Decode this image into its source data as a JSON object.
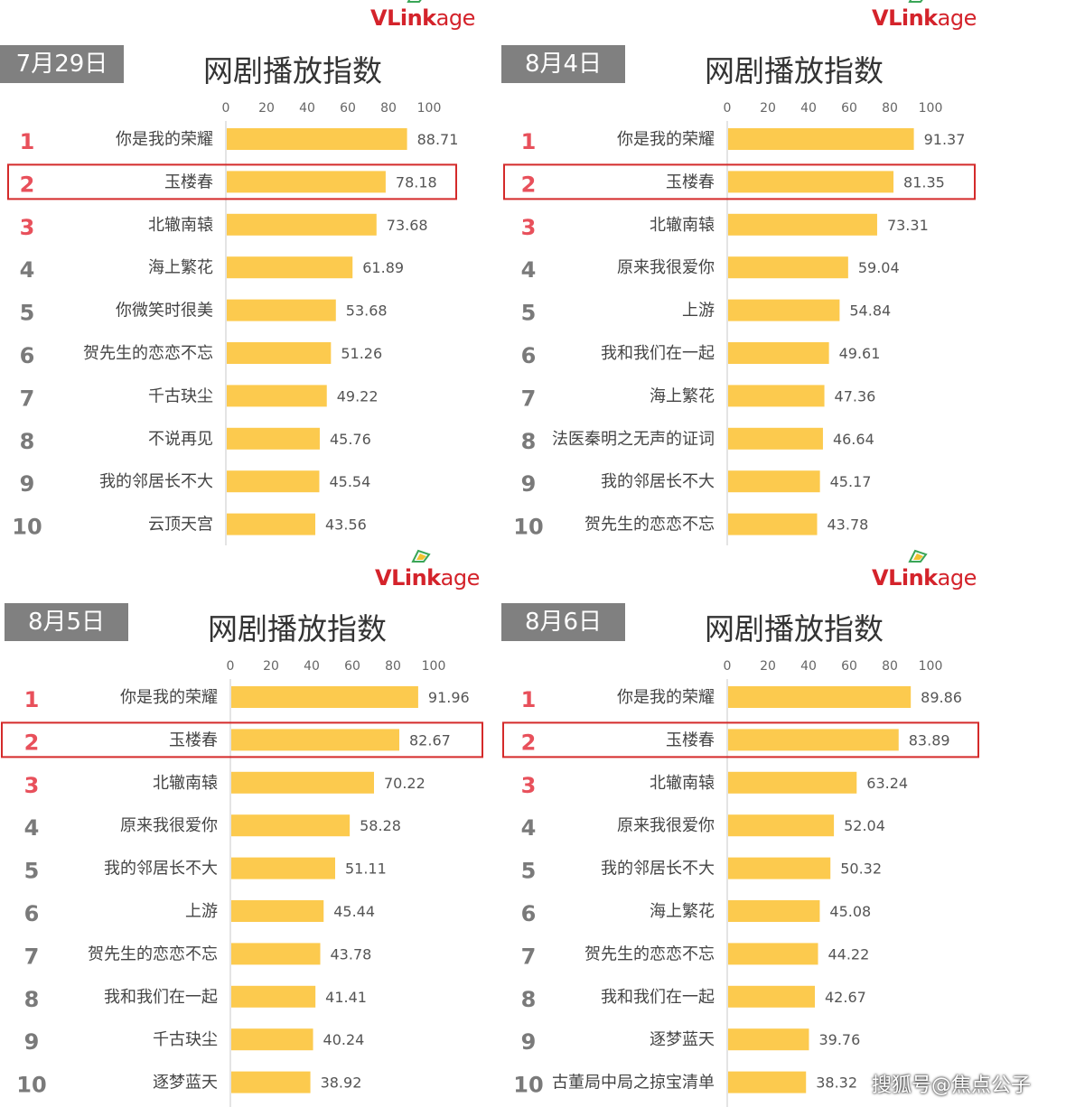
{
  "brand": {
    "logo_bold": "VLink",
    "logo_rest": "age"
  },
  "colors": {
    "bar": "#fcca4e",
    "rank_top": "#e8505b",
    "rank_other": "#7a7a7a",
    "highlight": "#d42a2a",
    "date_bg": "#808080"
  },
  "watermark": "搜狐号@焦点公子",
  "chart_data": [
    {
      "type": "bar",
      "date": "7月29日",
      "title": "网剧播放指数",
      "xlim": [
        0,
        100
      ],
      "ticks": [
        0,
        20,
        40,
        60,
        80,
        100
      ],
      "highlight_rank": 2,
      "categories": [
        "你是我的荣耀",
        "玉楼春",
        "北辙南辕",
        "海上繁花",
        "你微笑时很美",
        "贺先生的恋恋不忘",
        "千古玦尘",
        "不说再见",
        "我的邻居长不大",
        "云顶天宫"
      ],
      "values": [
        88.71,
        78.18,
        73.68,
        61.89,
        53.68,
        51.26,
        49.22,
        45.76,
        45.54,
        43.56
      ],
      "ranks": [
        "1",
        "2",
        "3",
        "4",
        "5",
        "6",
        "7",
        "8",
        "9",
        "10"
      ]
    },
    {
      "type": "bar",
      "date": "8月4日",
      "title": "网剧播放指数",
      "xlim": [
        0,
        100
      ],
      "ticks": [
        0,
        20,
        40,
        60,
        80,
        100
      ],
      "highlight_rank": 2,
      "categories": [
        "你是我的荣耀",
        "玉楼春",
        "北辙南辕",
        "原来我很爱你",
        "上游",
        "我和我们在一起",
        "海上繁花",
        "法医秦明之无声的证词",
        "我的邻居长不大",
        "贺先生的恋恋不忘"
      ],
      "values": [
        91.37,
        81.35,
        73.31,
        59.04,
        54.84,
        49.61,
        47.36,
        46.64,
        45.17,
        43.78
      ],
      "ranks": [
        "1",
        "2",
        "3",
        "4",
        "5",
        "6",
        "7",
        "8",
        "9",
        "10"
      ]
    },
    {
      "type": "bar",
      "date": "8月5日",
      "title": "网剧播放指数",
      "xlim": [
        0,
        100
      ],
      "ticks": [
        0,
        20,
        40,
        60,
        80,
        100
      ],
      "highlight_rank": 2,
      "categories": [
        "你是我的荣耀",
        "玉楼春",
        "北辙南辕",
        "原来我很爱你",
        "我的邻居长不大",
        "上游",
        "贺先生的恋恋不忘",
        "我和我们在一起",
        "千古玦尘",
        "逐梦蓝天"
      ],
      "values": [
        91.96,
        82.67,
        70.22,
        58.28,
        51.11,
        45.44,
        43.78,
        41.41,
        40.24,
        38.92
      ],
      "ranks": [
        "1",
        "2",
        "3",
        "4",
        "5",
        "6",
        "7",
        "8",
        "9",
        "10"
      ]
    },
    {
      "type": "bar",
      "date": "8月6日",
      "title": "网剧播放指数",
      "xlim": [
        0,
        100
      ],
      "ticks": [
        0,
        20,
        40,
        60,
        80,
        100
      ],
      "highlight_rank": 2,
      "categories": [
        "你是我的荣耀",
        "玉楼春",
        "北辙南辕",
        "原来我很爱你",
        "我的邻居长不大",
        "海上繁花",
        "贺先生的恋恋不忘",
        "我和我们在一起",
        "逐梦蓝天",
        "古董局中局之掠宝清单"
      ],
      "values": [
        89.86,
        83.89,
        63.24,
        52.04,
        50.32,
        45.08,
        44.22,
        42.67,
        39.76,
        38.32
      ],
      "ranks": [
        "1",
        "2",
        "3",
        "4",
        "5",
        "6",
        "7",
        "8",
        "9",
        "10"
      ]
    }
  ]
}
